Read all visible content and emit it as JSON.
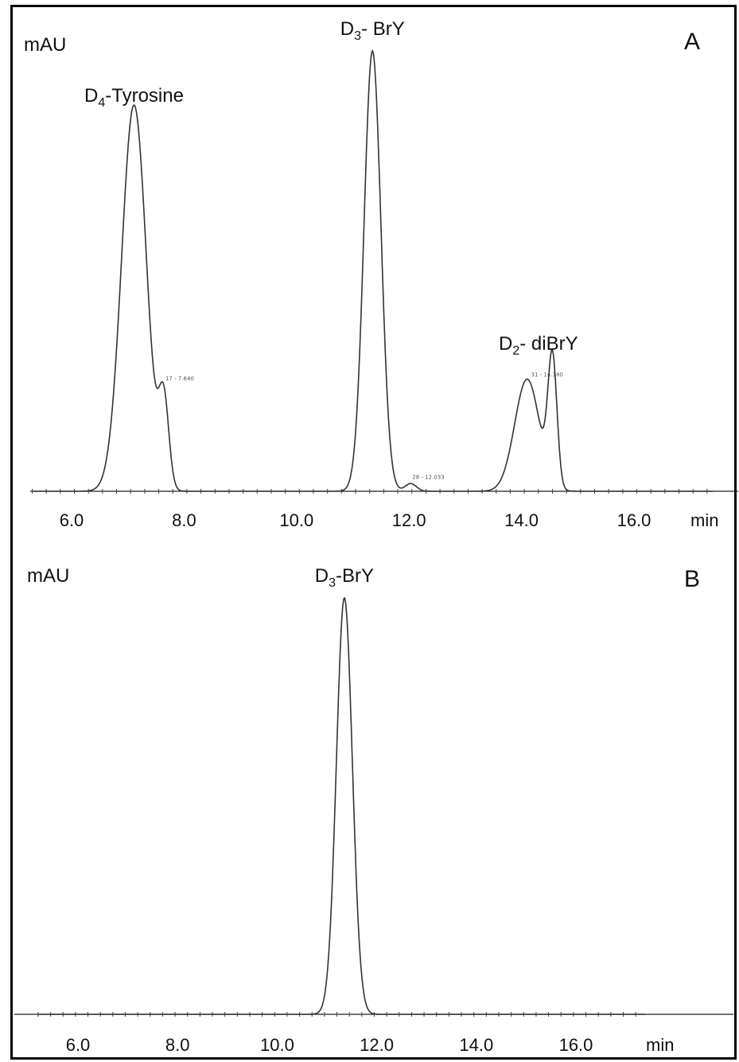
{
  "chart_data": [
    {
      "type": "line",
      "panel": "A",
      "ylabel": "mAU",
      "xlabel": "min",
      "xlim": [
        5.3,
        17.4
      ],
      "xticks": [
        "6.0",
        "8.0",
        "10.0",
        "12.0",
        "14.0",
        "16.0"
      ],
      "tick_values": [
        6,
        8,
        10,
        12,
        14,
        16
      ],
      "annotations": [
        {
          "x": 7.11,
          "main": "D",
          "sub": "4",
          "tail": "-Tyrosine"
        },
        {
          "x": 11.35,
          "main": "D",
          "sub": "3",
          "tail": "- BrY"
        },
        {
          "x": 14.3,
          "main": "D",
          "sub": "2",
          "tail": "- diBrY"
        }
      ],
      "peak_labels": [
        {
          "x": 7.64,
          "text": "17 - 7.640"
        },
        {
          "x": 12.03,
          "text": "28 - 12.033"
        },
        {
          "x": 14.14,
          "text": "31 - 14.140"
        }
      ],
      "peaks": [
        {
          "rt": 7.11,
          "height": 100,
          "w": 0.22
        },
        {
          "rt": 7.64,
          "height": 22,
          "w": 0.09
        },
        {
          "rt": 11.35,
          "height": 114,
          "w": 0.15
        },
        {
          "rt": 12.03,
          "height": 2,
          "w": 0.1
        },
        {
          "rt": 14.1,
          "height": 29,
          "w": 0.22
        },
        {
          "rt": 14.55,
          "height": 33,
          "w": 0.08
        }
      ]
    },
    {
      "type": "line",
      "panel": "B",
      "ylabel": "mAU",
      "xlabel": "min",
      "xlim": [
        5.2,
        17.4
      ],
      "xticks": [
        "6.0",
        "8.0",
        "10.0",
        "12.0",
        "14.0",
        "16.0"
      ],
      "tick_values": [
        6,
        8,
        10,
        12,
        14,
        16
      ],
      "annotations": [
        {
          "x": 11.35,
          "main": "D",
          "sub": "3",
          "tail": "-BrY"
        }
      ],
      "peaks": [
        {
          "rt": 11.35,
          "height": 100,
          "w": 0.16
        }
      ]
    }
  ]
}
